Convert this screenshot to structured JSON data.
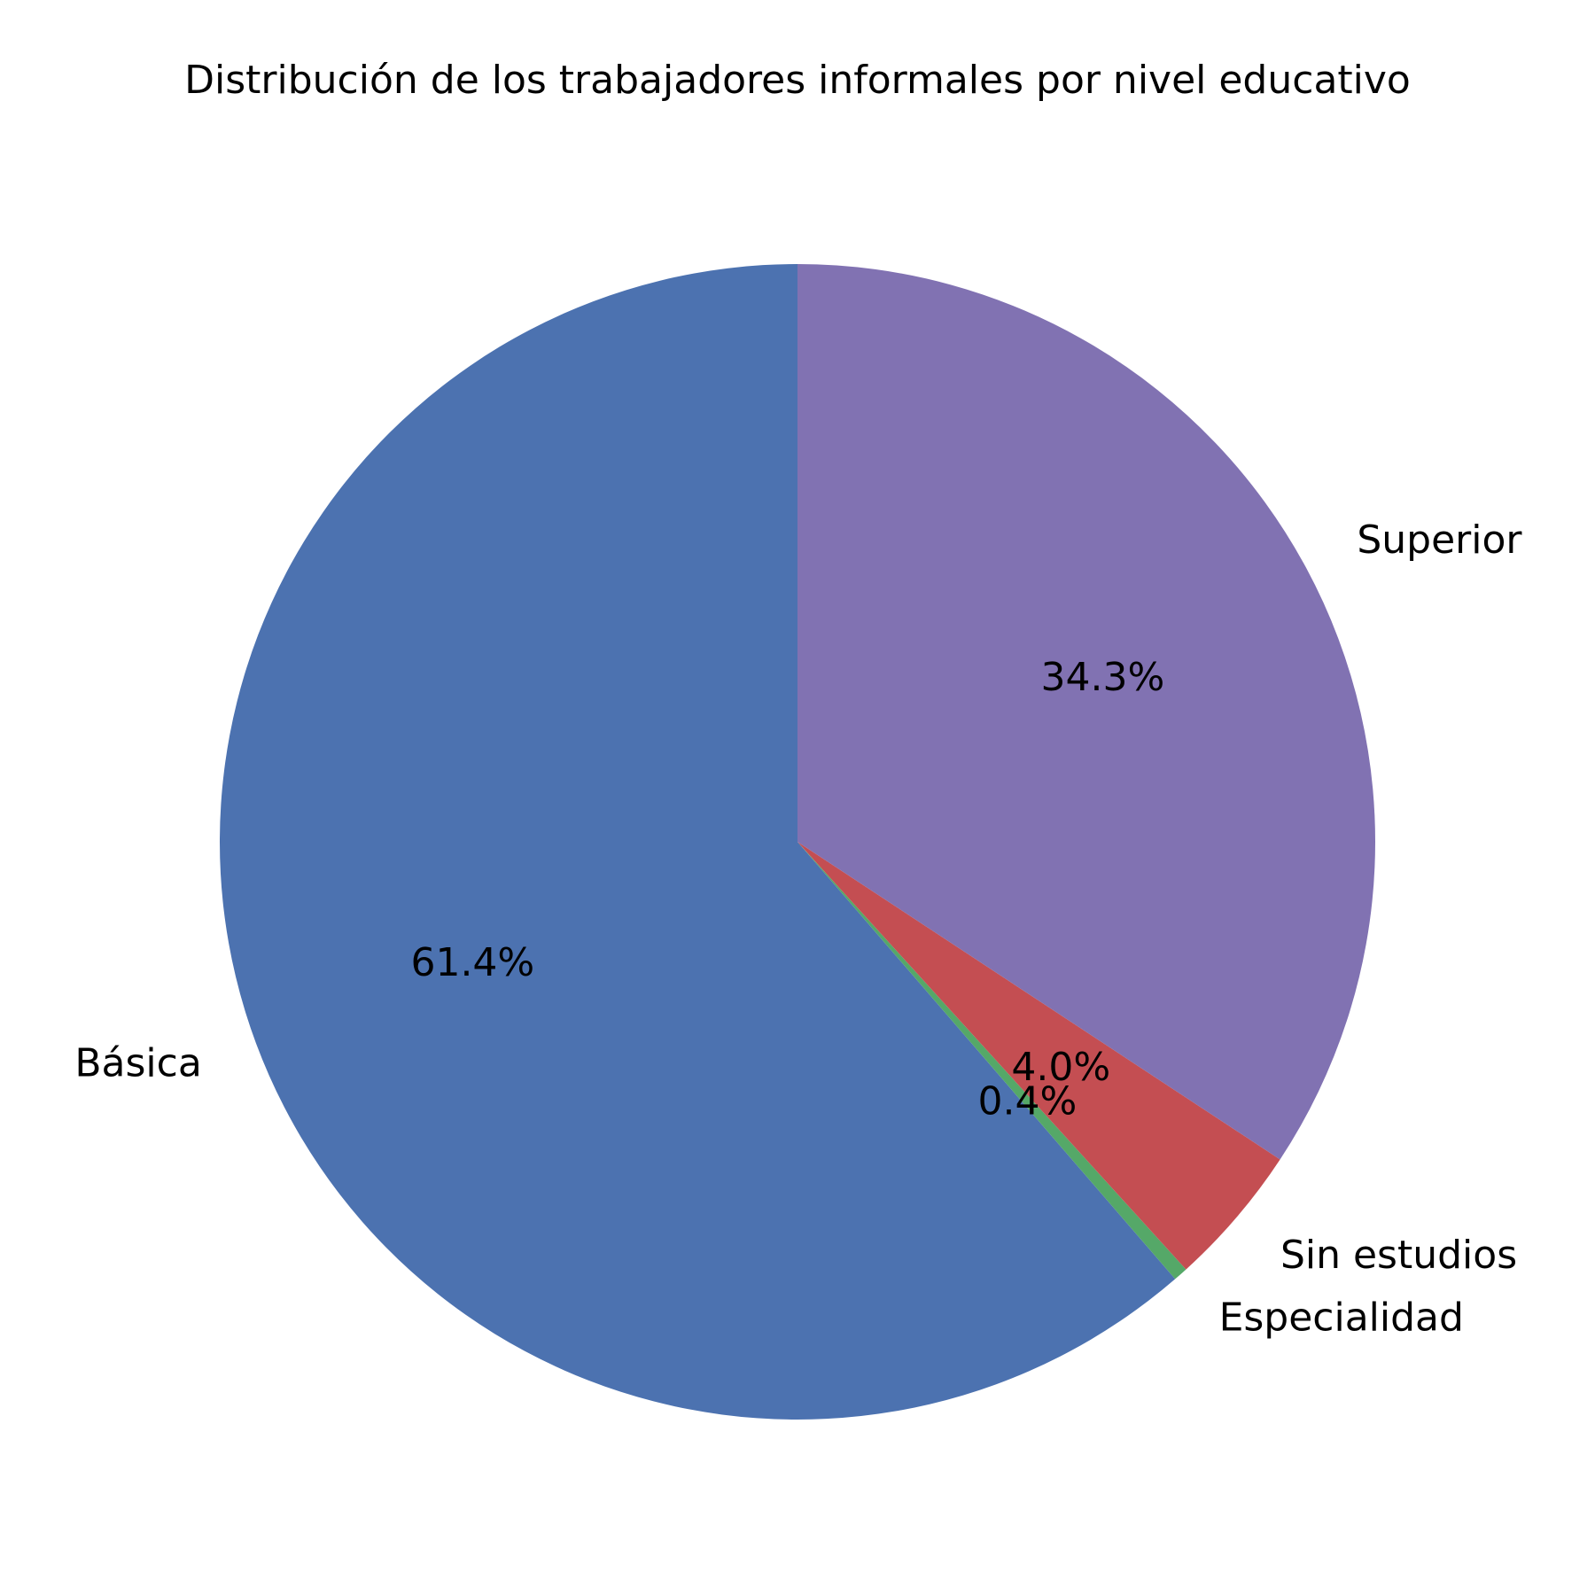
{
  "chart_data": {
    "type": "pie",
    "title": "Distribución de los trabajadores informales por nivel educativo",
    "start_angle_deg": 90,
    "direction": "counterclockwise",
    "slices": [
      {
        "label": "Básica",
        "value": 61.4,
        "pct_label": "61.4%",
        "color": "#4c72b0"
      },
      {
        "label": "Especialidad",
        "value": 0.4,
        "pct_label": "0.4%",
        "color": "#55a868"
      },
      {
        "label": "Sin estudios",
        "value": 4.0,
        "pct_label": "4.0%",
        "color": "#c44e52"
      },
      {
        "label": "Superior",
        "value": 34.3,
        "pct_label": "34.3%",
        "color": "#8172b2"
      }
    ]
  }
}
